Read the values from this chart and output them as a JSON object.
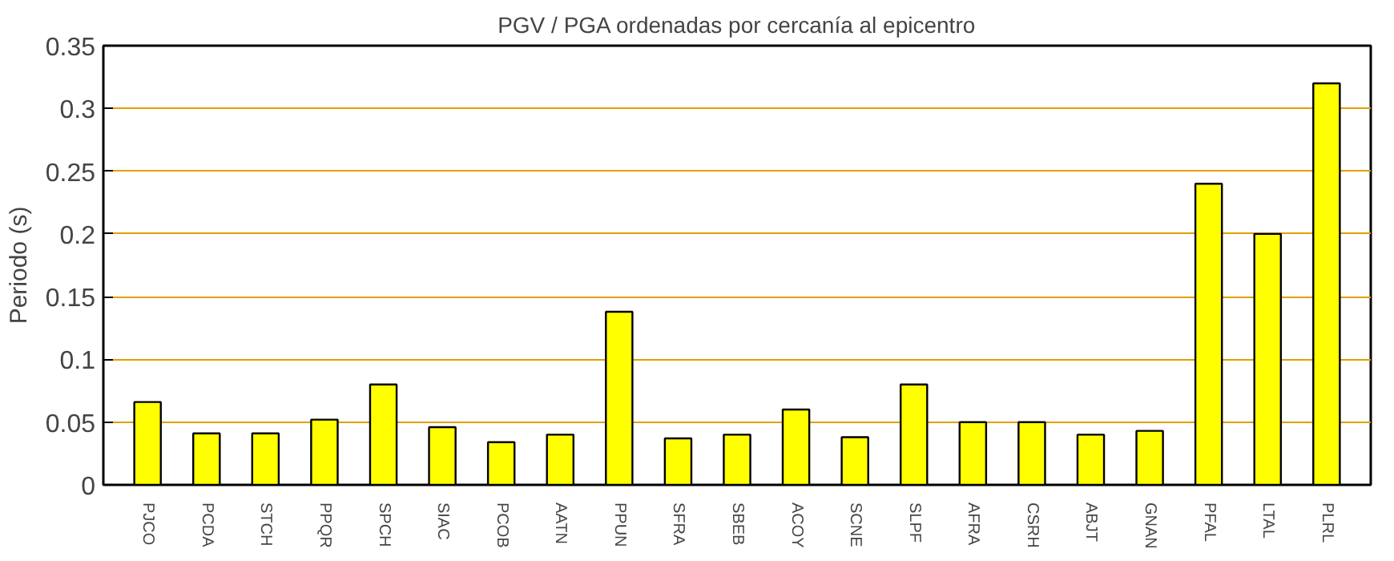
{
  "chart_data": {
    "type": "bar",
    "title": "PGV / PGA ordenadas por cercanía al epicentro",
    "ylabel": "Periodo (s)",
    "categories": [
      "PJCO",
      "PCDA",
      "STCH",
      "PPQR",
      "SPCH",
      "SIAC",
      "PCOB",
      "AATN",
      "PPUN",
      "SFRA",
      "SBEB",
      "ACOY",
      "SCNE",
      "SLPF",
      "AFRA",
      "CSRH",
      "ABJT",
      "GNAN",
      "PFAL",
      "LTAL",
      "PLRL"
    ],
    "values": [
      0.066,
      0.041,
      0.041,
      0.052,
      0.08,
      0.046,
      0.034,
      0.04,
      0.138,
      0.037,
      0.04,
      0.06,
      0.038,
      0.08,
      0.05,
      0.05,
      0.04,
      0.043,
      0.24,
      0.2,
      0.32
    ],
    "color": "#ffff00",
    "ylim": [
      0,
      0.35
    ],
    "yticks": [
      0,
      0.05,
      0.1,
      0.15,
      0.2,
      0.25,
      0.3,
      0.35
    ],
    "grid": "y"
  }
}
